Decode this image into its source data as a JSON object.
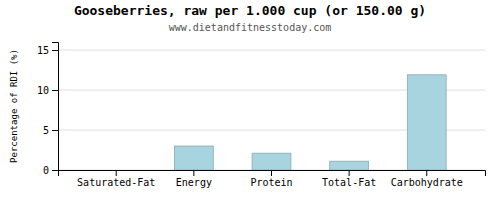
{
  "chart_data": {
    "type": "bar",
    "title": "Gooseberries, raw per 1.000 cup (or 150.00 g)",
    "subtitle": "www.dietandfitnesstoday.com",
    "categories": [
      "Saturated-Fat",
      "Energy",
      "Protein",
      "Total-Fat",
      "Carbohydrate"
    ],
    "values": [
      0.0,
      3.0,
      2.1,
      1.1,
      11.9
    ],
    "color": "#a8d4e0",
    "ylabel": "Percentage of RDI (%)",
    "ylim": [
      0,
      16
    ],
    "yticks": [
      0,
      5,
      10,
      15
    ],
    "grid": true
  }
}
